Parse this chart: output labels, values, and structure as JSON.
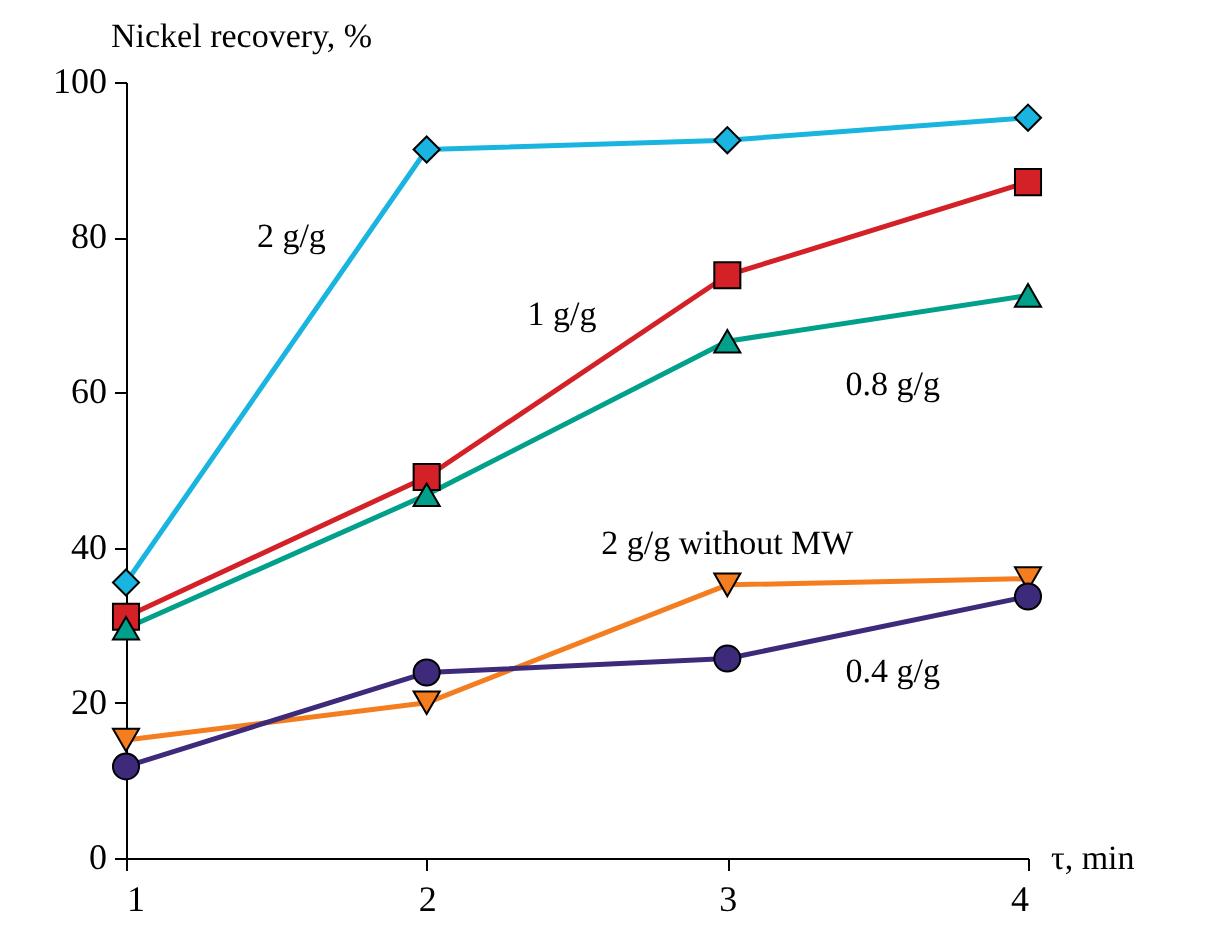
{
  "chart_data": {
    "type": "line",
    "xlabel": "τ, min",
    "ylabel": "Nickel recovery, %",
    "x": [
      1,
      2,
      3,
      4
    ],
    "xlim": [
      1,
      4
    ],
    "xticks": [
      1,
      2,
      3,
      4
    ],
    "ylim": [
      0,
      100
    ],
    "yticks": [
      0,
      20,
      40,
      60,
      80,
      100
    ],
    "grid": false,
    "legend": false,
    "line_style": "solid",
    "series": [
      {
        "name": "2 g/g",
        "color": "#1ab4e0",
        "marker": "diamond",
        "values": [
          35.5,
          91.3,
          92.5,
          95.4
        ]
      },
      {
        "name": "1 g/g",
        "color": "#d42027",
        "marker": "square",
        "values": [
          31.1,
          49.1,
          75.1,
          87.1
        ]
      },
      {
        "name": "0.8 g/g",
        "color": "#00a08a",
        "marker": "triangle",
        "values": [
          29.6,
          46.8,
          66.6,
          72.5
        ]
      },
      {
        "name": "2 g/g without MW",
        "color": "#f47d20",
        "marker": "triangle-down",
        "values": [
          15.2,
          20,
          35.2,
          36
        ]
      },
      {
        "name": "0.4 g/g",
        "color": "#3d2a7a",
        "marker": "circle",
        "values": [
          11.8,
          23.9,
          25.7,
          33.7
        ]
      }
    ]
  }
}
